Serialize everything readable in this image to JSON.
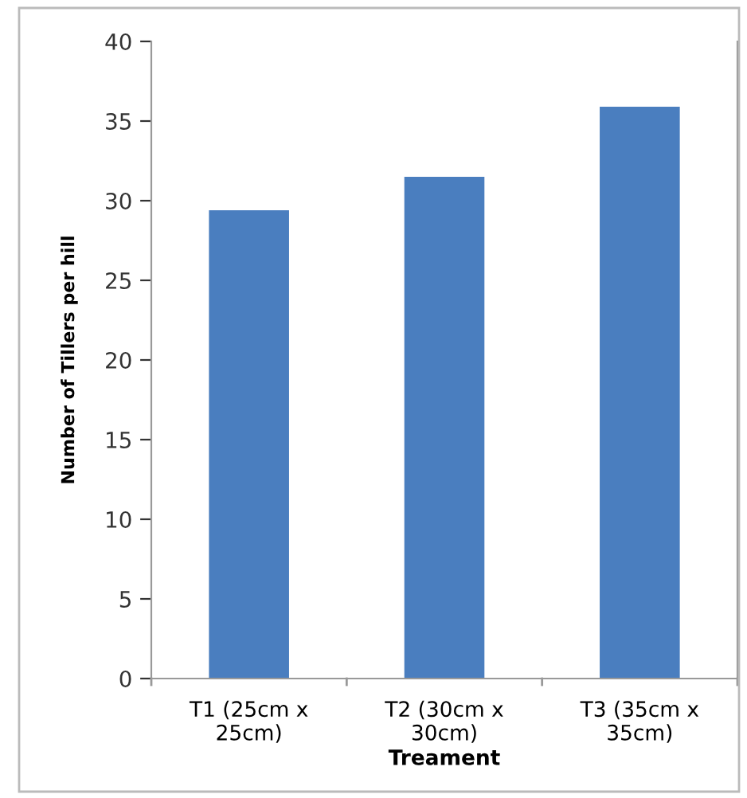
{
  "chart_data": {
    "type": "bar",
    "xlabel": "Treament",
    "ylabel": "Number of Tillers per hill",
    "categories": [
      "T1 (25cm x 25cm)",
      "T2 (30cm x 30cm)",
      "T3 (35cm x 35cm)"
    ],
    "values": [
      29.4,
      31.5,
      35.9
    ],
    "color": "#4a7ebf",
    "ylim": [
      0,
      40
    ],
    "yticks": [
      0,
      5,
      10,
      15,
      20,
      25,
      30,
      35,
      40
    ],
    "grid": false,
    "legend": false
  }
}
